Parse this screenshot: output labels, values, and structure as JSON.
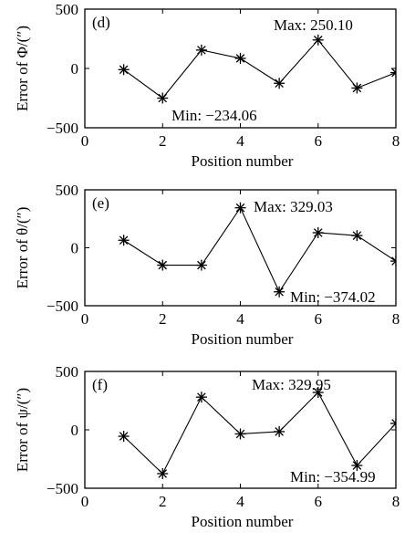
{
  "chart_data": [
    {
      "type": "line",
      "panel_label": "(d)",
      "ylabel": "Error of Φ/(″)",
      "xlabel": "Position number",
      "x": [
        1,
        2,
        3,
        4,
        5,
        6,
        7,
        8
      ],
      "series": [
        {
          "values": [
            -10,
            -250,
            155,
            85,
            -125,
            240,
            -165,
            -35
          ],
          "marker": "asterisk"
        }
      ],
      "xlim": [
        0,
        8
      ],
      "ylim": [
        -500,
        500
      ],
      "xticks": [
        "0",
        "2",
        "4",
        "6",
        "8"
      ],
      "yticks": [
        "500",
        "0",
        "−500"
      ],
      "annotations": {
        "max": "Max: 250.10",
        "min": "Min: −234.06"
      }
    },
    {
      "type": "line",
      "panel_label": "(e)",
      "ylabel": "Error of θ/(″)",
      "xlabel": "Position number",
      "x": [
        1,
        2,
        3,
        4,
        5,
        6,
        7,
        8
      ],
      "series": [
        {
          "values": [
            65,
            -150,
            -150,
            345,
            -380,
            130,
            105,
            -115
          ],
          "marker": "asterisk"
        }
      ],
      "xlim": [
        0,
        8
      ],
      "ylim": [
        -500,
        500
      ],
      "xticks": [
        "0",
        "2",
        "4",
        "6",
        "8"
      ],
      "yticks": [
        "500",
        "0",
        "−500"
      ],
      "annotations": {
        "max": "Max: 329.03",
        "min": "Min: −374.02"
      }
    },
    {
      "type": "line",
      "panel_label": "(f)",
      "ylabel": "Error of ψ/(″)",
      "xlabel": "Position number",
      "x": [
        1,
        2,
        3,
        4,
        5,
        6,
        7,
        8
      ],
      "series": [
        {
          "values": [
            -55,
            -375,
            280,
            -35,
            -15,
            320,
            -305,
            55
          ],
          "marker": "asterisk"
        }
      ],
      "xlim": [
        0,
        8
      ],
      "ylim": [
        -500,
        500
      ],
      "xticks": [
        "0",
        "2",
        "4",
        "6",
        "8"
      ],
      "yticks": [
        "500",
        "0",
        "−500"
      ],
      "annotations": {
        "max": "Max: 329.95",
        "min": "Min: −354.99"
      }
    }
  ]
}
